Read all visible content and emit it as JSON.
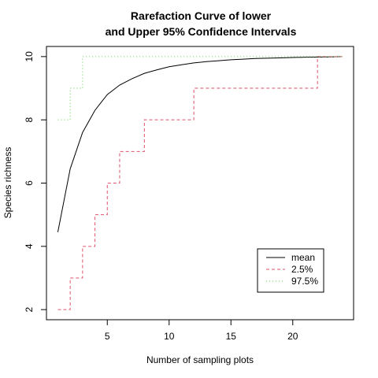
{
  "chart_data": {
    "type": "line",
    "title_lines": [
      "Rarefaction Curve of lower",
      "and Upper 95% Confidence Intervals"
    ],
    "xlabel": "Number of sampling plots",
    "ylabel": "Species richness",
    "xlim": [
      0.08,
      24.92
    ],
    "ylim": [
      1.68,
      10.32
    ],
    "xticks": [
      5,
      10,
      15,
      20
    ],
    "yticks": [
      2,
      4,
      6,
      8,
      10
    ],
    "grid": false,
    "legend_position": "bottom-right",
    "x": [
      1,
      2,
      3,
      4,
      5,
      6,
      7,
      8,
      9,
      10,
      11,
      12,
      13,
      14,
      15,
      16,
      17,
      18,
      19,
      20,
      21,
      22,
      23,
      24
    ],
    "series": [
      {
        "name": "mean",
        "color": "#000000",
        "dash": "solid",
        "values": [
          4.45,
          6.45,
          7.6,
          8.3,
          8.8,
          9.1,
          9.3,
          9.47,
          9.58,
          9.68,
          9.74,
          9.8,
          9.84,
          9.87,
          9.9,
          9.92,
          9.94,
          9.95,
          9.96,
          9.97,
          9.98,
          9.985,
          9.99,
          10.0
        ]
      },
      {
        "name": "2.5%",
        "color": "#DF536B",
        "dash": "dashed",
        "step": "post",
        "values": [
          2,
          3,
          4,
          5,
          6,
          7,
          7,
          8,
          8,
          8,
          8,
          9,
          9,
          9,
          9,
          9,
          9,
          9,
          9,
          9,
          9,
          10,
          10,
          10
        ]
      },
      {
        "name": "97.5%",
        "color": "#61D04F",
        "dash": "dotted",
        "step": "post",
        "values": [
          8,
          9,
          10,
          10,
          10,
          10,
          10,
          10,
          10,
          10,
          10,
          10,
          10,
          10,
          10,
          10,
          10,
          10,
          10,
          10,
          10,
          10,
          10,
          10
        ]
      }
    ]
  }
}
